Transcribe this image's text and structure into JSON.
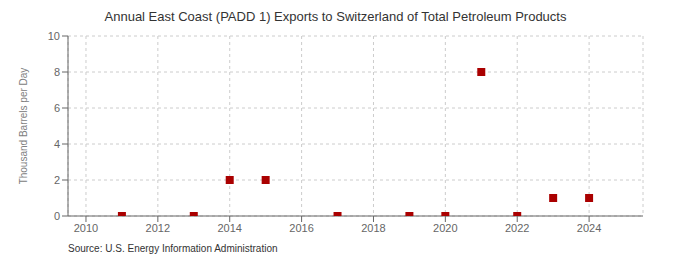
{
  "chart_data": {
    "type": "scatter",
    "title": "Annual East Coast (PADD 1) Exports to Switzerland of Total Petroleum Products",
    "y_label": "Thousand Barrels per Day",
    "annotations": [
      "Source: U.S. Energy Information Administration"
    ],
    "x": [
      2011,
      2013,
      2014,
      2015,
      2017,
      2019,
      2020,
      2021,
      2022,
      2023,
      2024
    ],
    "values": [
      0.0,
      0.0,
      2.0,
      2.0,
      0.0,
      0.0,
      0.0,
      8.0,
      0.0,
      1.0,
      1.0
    ],
    "color": "#aa0000",
    "marker": "square",
    "xlim": [
      2009.5,
      2025.5
    ],
    "ylim": [
      0,
      10
    ],
    "xticks": [
      2010,
      2012,
      2014,
      2016,
      2018,
      2020,
      2022,
      2024
    ],
    "yticks": [
      0,
      2,
      4,
      6,
      8,
      10
    ],
    "grid": true
  }
}
